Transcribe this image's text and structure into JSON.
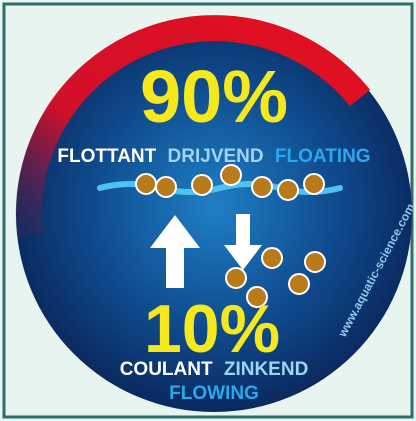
{
  "badge": {
    "top_percent": "90%",
    "top_words": [
      "FLOTTANT",
      "DRIJVEND",
      "FLOATING"
    ],
    "bottom_percent": "10%",
    "bottom_words": [
      "COULANT",
      "ZINKEND"
    ],
    "bottom_extra": "FLOWING",
    "website": "www.aquatic-science.com"
  }
}
